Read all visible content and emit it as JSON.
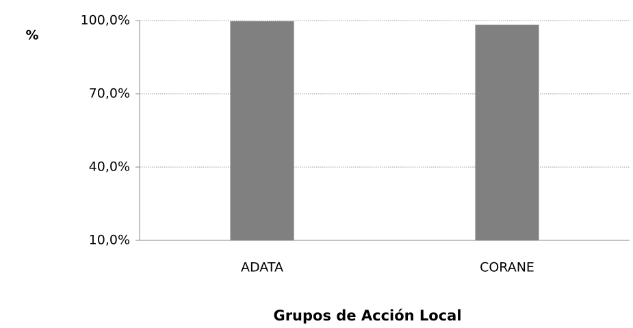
{
  "chart_data": {
    "type": "bar",
    "y_label": "%",
    "x_label": "Grupos de Acción Local",
    "categories": [
      "ADATA",
      "CORANE"
    ],
    "values": [
      99.7,
      98.3
    ],
    "color": "#808080",
    "ylim": [
      10,
      100
    ],
    "yticks": [
      {
        "value": 10,
        "label": "10,0%"
      },
      {
        "value": 40,
        "label": "40,0%"
      },
      {
        "value": 70,
        "label": "70,0%"
      },
      {
        "value": 100,
        "label": "100,0%"
      }
    ],
    "grid": true
  }
}
